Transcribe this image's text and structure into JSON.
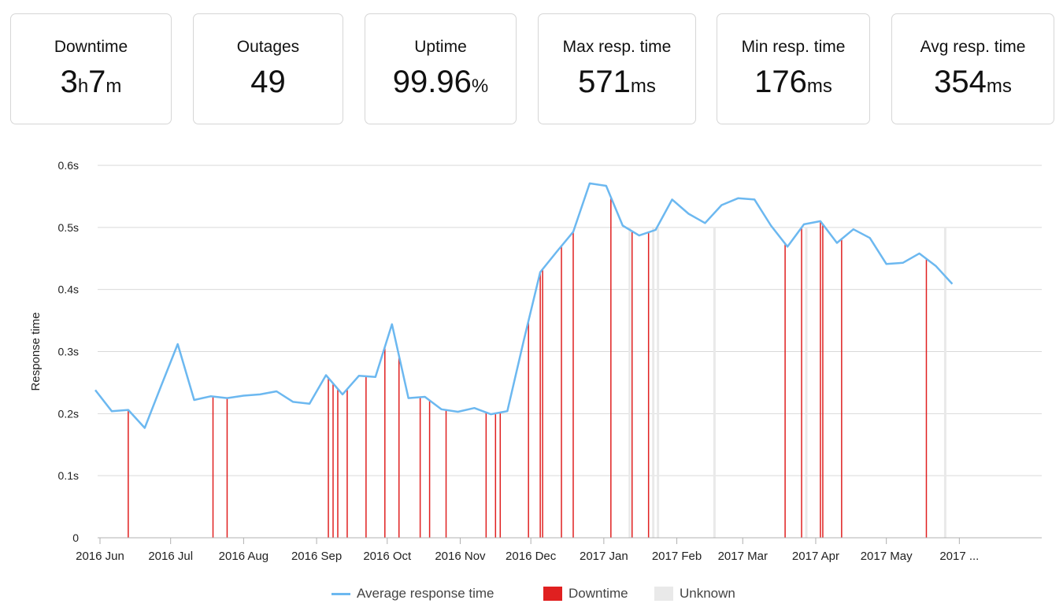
{
  "stats": [
    {
      "label": "Downtime",
      "parts": [
        {
          "t": "3",
          "u": false
        },
        {
          "t": "h",
          "u": true
        },
        {
          "t": "7",
          "u": false
        },
        {
          "t": "m",
          "u": true
        }
      ]
    },
    {
      "label": "Outages",
      "parts": [
        {
          "t": "49",
          "u": false
        }
      ]
    },
    {
      "label": "Uptime",
      "parts": [
        {
          "t": "99.96",
          "u": false
        },
        {
          "t": "%",
          "u": true
        }
      ]
    },
    {
      "label": "Max resp. time",
      "parts": [
        {
          "t": "571",
          "u": false
        },
        {
          "t": "ms",
          "u": true
        }
      ]
    },
    {
      "label": "Min resp. time",
      "parts": [
        {
          "t": "176",
          "u": false
        },
        {
          "t": "ms",
          "u": true
        }
      ]
    },
    {
      "label": "Avg resp. time",
      "parts": [
        {
          "t": "354",
          "u": false
        },
        {
          "t": "ms",
          "u": true
        }
      ]
    }
  ],
  "legend": {
    "avg_label": "Average response time",
    "downtime_label": "Downtime",
    "unknown_label": "Unknown"
  },
  "colors": {
    "line": "#6cb8f0",
    "downtime": "#e02020",
    "unknown": "#e9e9e9",
    "grid": "#d9d9d9",
    "axis": "#b0b0b0"
  },
  "chart_data": {
    "type": "line",
    "ylabel": "Response time",
    "xlabel": "",
    "ylim": [
      0,
      0.6
    ],
    "yticks": [
      0,
      0.1,
      0.2,
      0.3,
      0.4,
      0.5,
      0.6
    ],
    "ytick_labels": [
      "0",
      "0.1s",
      "0.2s",
      "0.3s",
      "0.4s",
      "0.5s",
      "0.6s"
    ],
    "x_unit": "days since 2016-06-01",
    "xlim": [
      -1,
      400
    ],
    "xticks": [
      {
        "value": 0,
        "label": "2016 Jun"
      },
      {
        "value": 30,
        "label": "2016 Jul"
      },
      {
        "value": 61,
        "label": "2016 Aug"
      },
      {
        "value": 92,
        "label": "2016 Sep"
      },
      {
        "value": 122,
        "label": "2016 Oct"
      },
      {
        "value": 153,
        "label": "2016 Nov"
      },
      {
        "value": 183,
        "label": "2016 Dec"
      },
      {
        "value": 214,
        "label": "2017 Jan"
      },
      {
        "value": 245,
        "label": "2017 Feb"
      },
      {
        "value": 273,
        "label": "2017 Mar"
      },
      {
        "value": 304,
        "label": "2017 Apr"
      },
      {
        "value": 334,
        "label": "2017 May"
      },
      {
        "value": 365,
        "label": "2017 ..."
      }
    ],
    "series": [
      {
        "name": "Average response time",
        "points": [
          [
            -2,
            0.238
          ],
          [
            5,
            0.204
          ],
          [
            12,
            0.206
          ],
          [
            19,
            0.177
          ],
          [
            26,
            0.245
          ],
          [
            33,
            0.312
          ],
          [
            40,
            0.222
          ],
          [
            47,
            0.228
          ],
          [
            54,
            0.225
          ],
          [
            61,
            0.229
          ],
          [
            68,
            0.231
          ],
          [
            75,
            0.236
          ],
          [
            82,
            0.219
          ],
          [
            89,
            0.216
          ],
          [
            96,
            0.262
          ],
          [
            103,
            0.231
          ],
          [
            110,
            0.261
          ],
          [
            117,
            0.259
          ],
          [
            124,
            0.344
          ],
          [
            131,
            0.225
          ],
          [
            138,
            0.227
          ],
          [
            145,
            0.207
          ],
          [
            152,
            0.203
          ],
          [
            159,
            0.209
          ],
          [
            166,
            0.199
          ],
          [
            173,
            0.204
          ],
          [
            180,
            0.318
          ],
          [
            187,
            0.428
          ],
          [
            194,
            0.461
          ],
          [
            201,
            0.493
          ],
          [
            208,
            0.571
          ],
          [
            215,
            0.567
          ],
          [
            222,
            0.503
          ],
          [
            229,
            0.487
          ],
          [
            236,
            0.496
          ],
          [
            243,
            0.545
          ],
          [
            250,
            0.522
          ],
          [
            257,
            0.507
          ],
          [
            264,
            0.536
          ],
          [
            271,
            0.547
          ],
          [
            278,
            0.545
          ],
          [
            285,
            0.503
          ],
          [
            292,
            0.469
          ],
          [
            299,
            0.505
          ],
          [
            306,
            0.51
          ],
          [
            313,
            0.475
          ],
          [
            320,
            0.497
          ],
          [
            327,
            0.483
          ],
          [
            334,
            0.441
          ],
          [
            341,
            0.443
          ],
          [
            348,
            0.458
          ],
          [
            355,
            0.438
          ],
          [
            362,
            0.409
          ]
        ]
      }
    ],
    "downtime_days": [
      12,
      48,
      54,
      97,
      99,
      101,
      105,
      113,
      121,
      127,
      136,
      140,
      147,
      164,
      168,
      170,
      182,
      187,
      188,
      196,
      201,
      217,
      226,
      233,
      291,
      298,
      306,
      307,
      315,
      351
    ],
    "unknown_days": [
      225,
      235,
      237,
      261,
      300,
      359
    ]
  }
}
